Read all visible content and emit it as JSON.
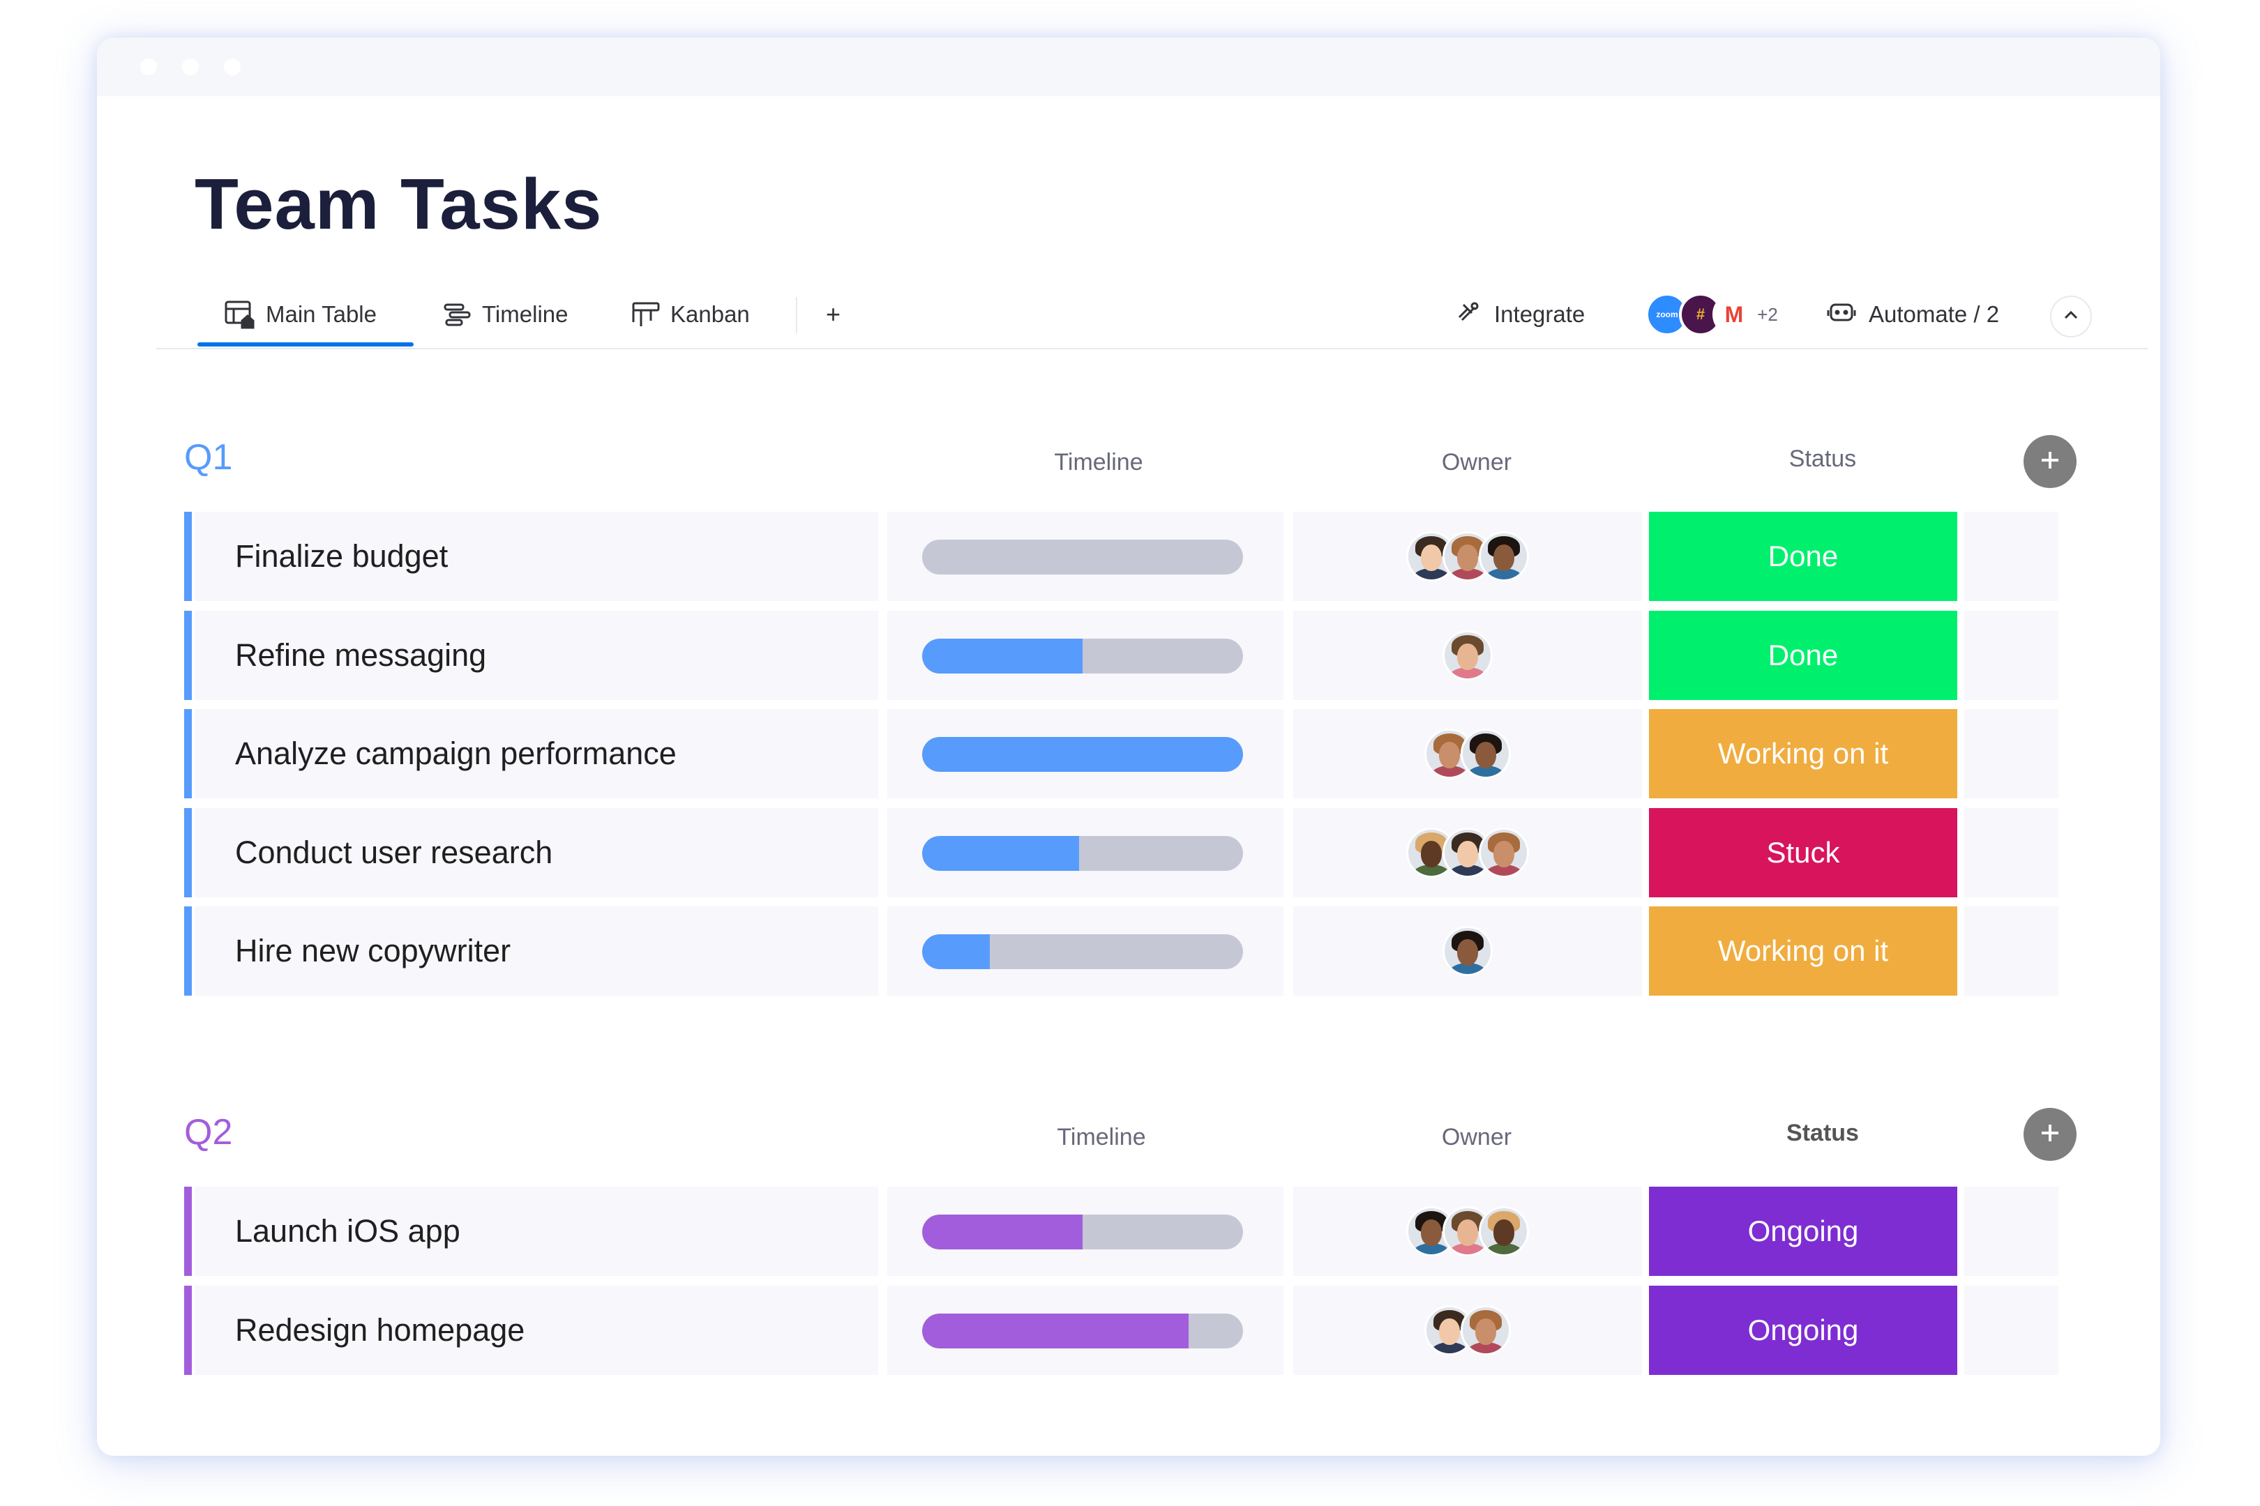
{
  "page": {
    "title": "Team Tasks"
  },
  "tabs": [
    {
      "label": "Main Table",
      "icon": "table-home-icon",
      "active": true
    },
    {
      "label": "Timeline",
      "icon": "timeline-icon",
      "active": false
    },
    {
      "label": "Kanban",
      "icon": "kanban-icon",
      "active": false
    },
    {
      "label": "+",
      "icon": "plus-icon",
      "active": false
    }
  ],
  "toolbar": {
    "integrate_label": "Integrate",
    "integrations": [
      {
        "name": "zoom",
        "label": "zoom",
        "color": "#2d8cff"
      },
      {
        "name": "slack",
        "label": "#",
        "color": "#4a154b"
      },
      {
        "name": "gmail",
        "label": "M",
        "color": "#ea4335"
      },
      {
        "name": "more",
        "label": "+2",
        "color": "#676879"
      }
    ],
    "automate_label": "Automate / 2"
  },
  "columns": {
    "timeline": "Timeline",
    "owner": "Owner",
    "status": "Status"
  },
  "colors": {
    "q1": "#579bfc",
    "q2": "#a25ddc",
    "done": "#00f06e",
    "working": "#f0ac3e",
    "stuck": "#d7145c",
    "ongoing": "#7e2dd2",
    "track": "#c5c7d4"
  },
  "groups": [
    {
      "title": "Q1",
      "color": "#579bfc",
      "rows": [
        {
          "name": "Finalize budget",
          "progress": 0.0,
          "owners": 3,
          "status": "Done",
          "status_color": "#00f06e"
        },
        {
          "name": "Refine messaging",
          "progress": 0.5,
          "owners": 1,
          "status": "Done",
          "status_color": "#00f06e"
        },
        {
          "name": "Analyze campaign performance",
          "progress": 1.0,
          "owners": 2,
          "status": "Working on it",
          "status_color": "#f0ac3e"
        },
        {
          "name": "Conduct user research",
          "progress": 0.49,
          "owners": 3,
          "status": "Stuck",
          "status_color": "#d7145c"
        },
        {
          "name": "Hire new copywriter",
          "progress": 0.21,
          "owners": 1,
          "status": "Working on it",
          "status_color": "#f0ac3e"
        }
      ]
    },
    {
      "title": "Q2",
      "color": "#a25ddc",
      "rows": [
        {
          "name": "Launch iOS app",
          "progress": 0.5,
          "owners": 3,
          "status": "Ongoing",
          "status_color": "#7e2dd2"
        },
        {
          "name": "Redesign homepage",
          "progress": 0.83,
          "owners": 2,
          "status": "Ongoing",
          "status_color": "#7e2dd2"
        }
      ]
    }
  ]
}
